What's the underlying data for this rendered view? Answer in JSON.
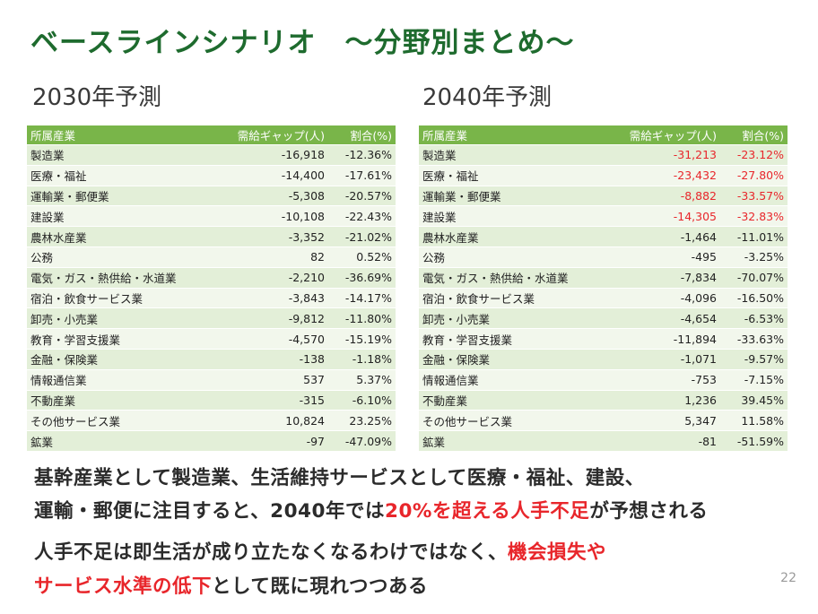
{
  "title": "ベースラインシナリオ　～分野別まとめ～",
  "left": {
    "heading": "2030年予測",
    "columns": [
      "所属産業",
      "需給ギャップ(人)",
      "割合(%)"
    ],
    "rows": [
      {
        "industry": "製造業",
        "gap": "-16,918",
        "ratio": "-12.36%"
      },
      {
        "industry": "医療・福祉",
        "gap": "-14,400",
        "ratio": "-17.61%"
      },
      {
        "industry": "運輸業・郵便業",
        "gap": "-5,308",
        "ratio": "-20.57%"
      },
      {
        "industry": "建設業",
        "gap": "-10,108",
        "ratio": "-22.43%"
      },
      {
        "industry": "農林水産業",
        "gap": "-3,352",
        "ratio": "-21.02%"
      },
      {
        "industry": "公務",
        "gap": "82",
        "ratio": "0.52%"
      },
      {
        "industry": "電気・ガス・熱供給・水道業",
        "gap": "-2,210",
        "ratio": "-36.69%"
      },
      {
        "industry": "宿泊・飲食サービス業",
        "gap": "-3,843",
        "ratio": "-14.17%"
      },
      {
        "industry": "卸売・小売業",
        "gap": "-9,812",
        "ratio": "-11.80%"
      },
      {
        "industry": "教育・学習支援業",
        "gap": "-4,570",
        "ratio": "-15.19%"
      },
      {
        "industry": "金融・保険業",
        "gap": "-138",
        "ratio": "-1.18%"
      },
      {
        "industry": "情報通信業",
        "gap": "537",
        "ratio": "5.37%"
      },
      {
        "industry": "不動産業",
        "gap": "-315",
        "ratio": "-6.10%"
      },
      {
        "industry": "その他サービス業",
        "gap": "10,824",
        "ratio": "23.25%"
      },
      {
        "industry": "鉱業",
        "gap": "-97",
        "ratio": "-47.09%"
      }
    ]
  },
  "right": {
    "heading": "2040年予測",
    "columns": [
      "所属産業",
      "需給ギャップ(人)",
      "割合(%)"
    ],
    "rows": [
      {
        "industry": "製造業",
        "gap": "-31,213",
        "ratio": "-23.12%"
      },
      {
        "industry": "医療・福祉",
        "gap": "-23,432",
        "ratio": "-27.80%"
      },
      {
        "industry": "運輸業・郵便業",
        "gap": "-8,882",
        "ratio": "-33.57%"
      },
      {
        "industry": "建設業",
        "gap": "-14,305",
        "ratio": "-32.83%"
      },
      {
        "industry": "農林水産業",
        "gap": "-1,464",
        "ratio": "-11.01%"
      },
      {
        "industry": "公務",
        "gap": "-495",
        "ratio": "-3.25%"
      },
      {
        "industry": "電気・ガス・熱供給・水道業",
        "gap": "-7,834",
        "ratio": "-70.07%"
      },
      {
        "industry": "宿泊・飲食サービス業",
        "gap": "-4,096",
        "ratio": "-16.50%"
      },
      {
        "industry": "卸売・小売業",
        "gap": "-4,654",
        "ratio": "-6.53%"
      },
      {
        "industry": "教育・学習支援業",
        "gap": "-11,894",
        "ratio": "-33.63%"
      },
      {
        "industry": "金融・保険業",
        "gap": "-1,071",
        "ratio": "-9.57%"
      },
      {
        "industry": "情報通信業",
        "gap": "-753",
        "ratio": "-7.15%"
      },
      {
        "industry": "不動産業",
        "gap": "1,236",
        "ratio": "39.45%"
      },
      {
        "industry": "その他サービス業",
        "gap": "5,347",
        "ratio": "11.58%"
      },
      {
        "industry": "鉱業",
        "gap": "-81",
        "ratio": "-51.59%"
      }
    ]
  },
  "summary": {
    "line1": "基幹産業として製造業、生活維持サービスとして医療・福祉、建設、",
    "line2_a": "運輸・郵便に注目すると、2040年では",
    "line2_red": "20%を超える人手不足",
    "line2_b": "が予想される",
    "line3_a": "人手不足は即生活が成り立たなくなるわけではなく、",
    "line3_red": "機会損失や",
    "line4_red": "サービス水準の低下",
    "line4_b": "として既に現れつつある"
  },
  "page_number": "22",
  "colors": {
    "title": "#1e6b2e",
    "header_bg": "#79b549",
    "row_odd": "#e3efd8",
    "row_even": "#f2f7ec",
    "highlight": "#e8262b"
  }
}
